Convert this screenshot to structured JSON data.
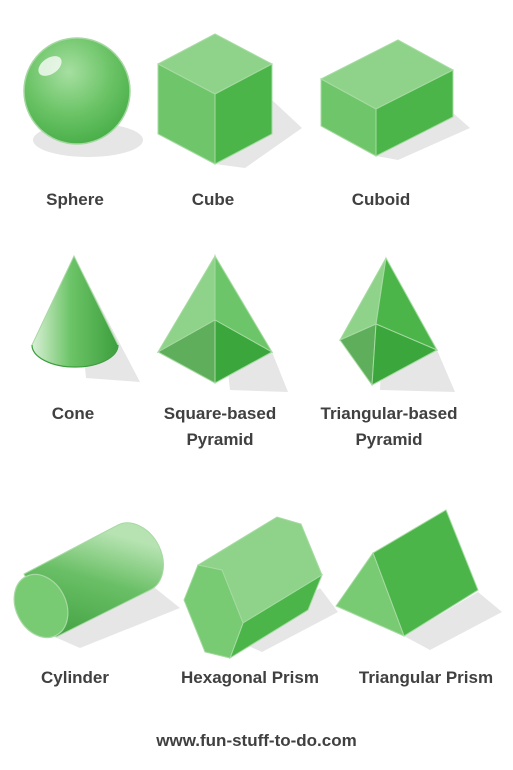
{
  "shapes": [
    {
      "id": "sphere",
      "lines": [
        "Sphere"
      ]
    },
    {
      "id": "cube",
      "lines": [
        "Cube"
      ]
    },
    {
      "id": "cuboid",
      "lines": [
        "Cuboid"
      ]
    },
    {
      "id": "cone",
      "lines": [
        "Cone"
      ]
    },
    {
      "id": "square-pyramid",
      "lines": [
        "Square-based",
        "Pyramid"
      ]
    },
    {
      "id": "triangular-pyramid",
      "lines": [
        "Triangular-based",
        "Pyramid"
      ]
    },
    {
      "id": "cylinder",
      "lines": [
        "Cylinder"
      ]
    },
    {
      "id": "hexagonal-prism",
      "lines": [
        "Hexagonal Prism"
      ]
    },
    {
      "id": "triangular-prism",
      "lines": [
        "Triangular Prism"
      ]
    }
  ],
  "footer": "www.fun-stuff-to-do.com",
  "colors": {
    "label": "#404040",
    "shadow": "#e6e6e6",
    "light": "#8fd38a",
    "mid": "#6fc56a",
    "dark": "#4cb54a",
    "darker": "#3aa63b",
    "edge": "#9ad596"
  }
}
